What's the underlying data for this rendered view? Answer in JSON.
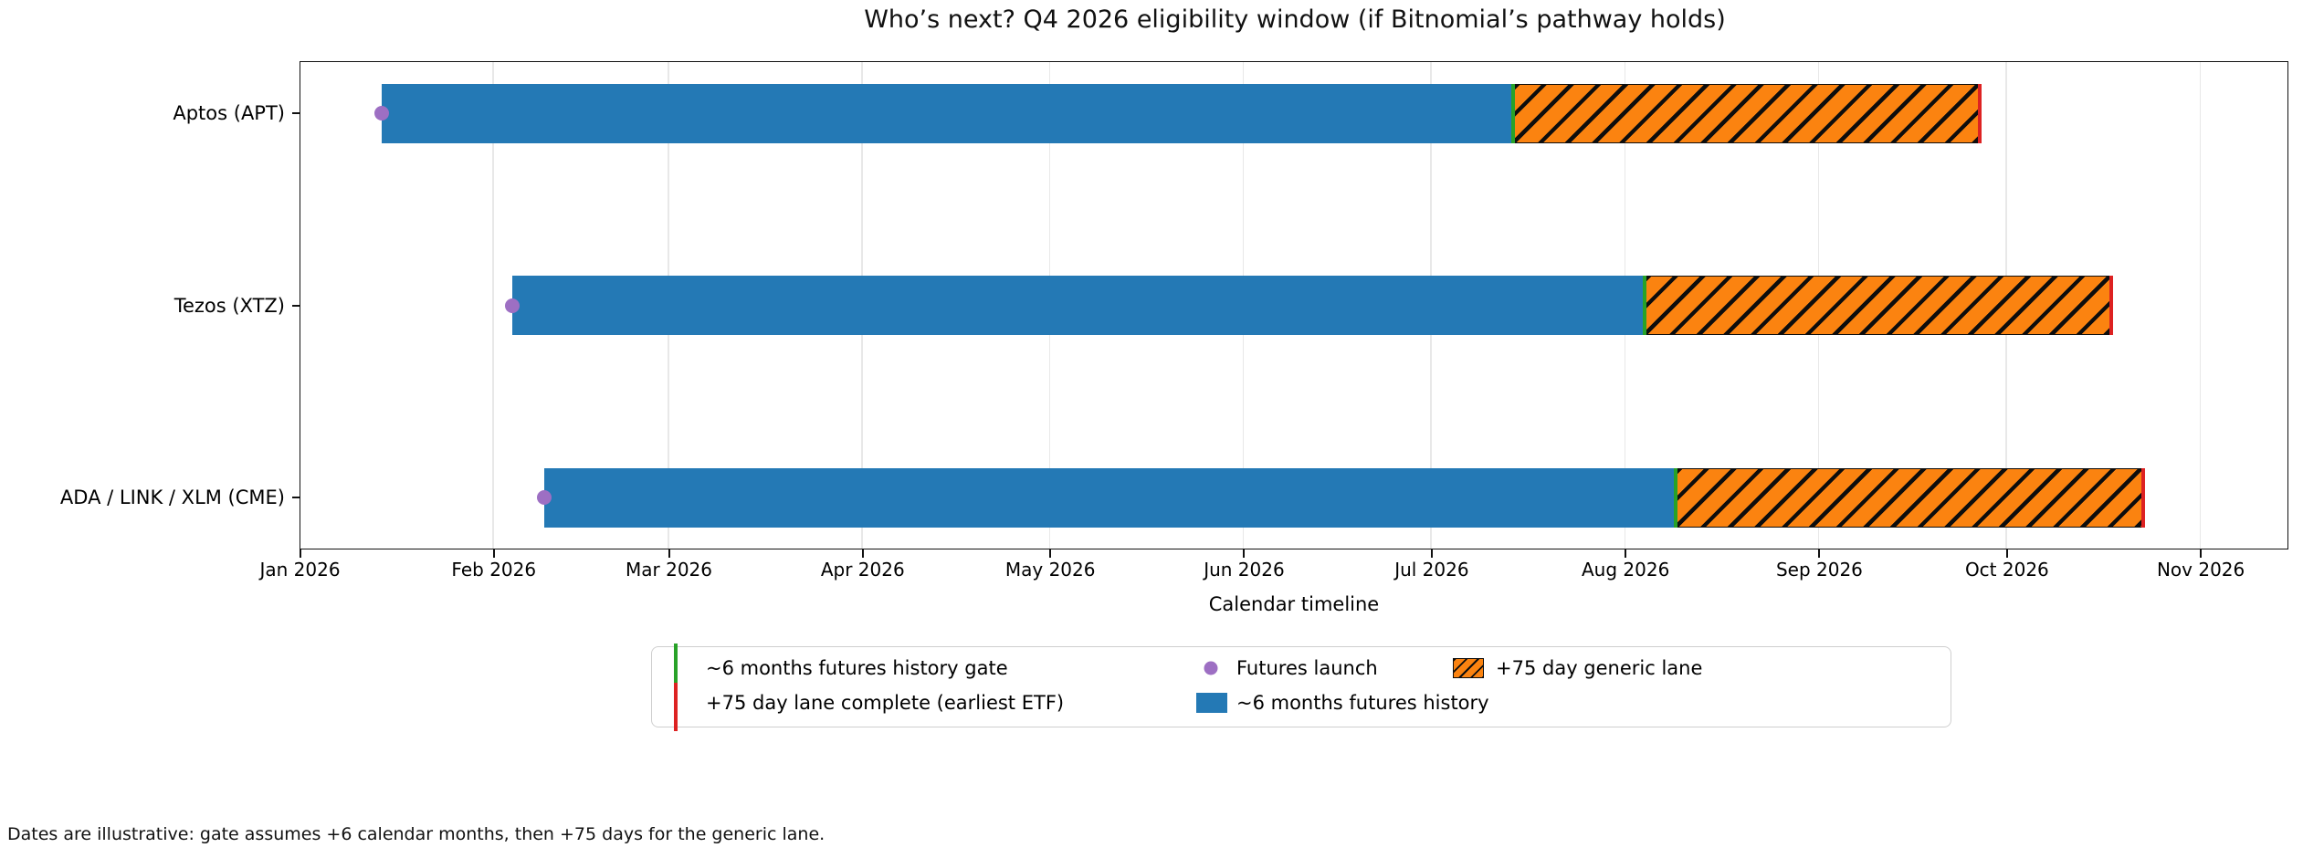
{
  "chart_data": {
    "type": "gantt-timeline",
    "title": "Who’s next? Q4 2026 eligibility window (if Bitnomial’s pathway holds)",
    "xlabel": "Calendar timeline",
    "footnote": "Dates are illustrative: gate assumes +6 calendar months, then +75 days for the generic lane.",
    "x_axis": {
      "start": "2026-01-01",
      "end": "2026-11-15",
      "ticks": [
        {
          "label": "Jan 2026",
          "date": "2026-01-01"
        },
        {
          "label": "Feb 2026",
          "date": "2026-02-01"
        },
        {
          "label": "Mar 2026",
          "date": "2026-03-01"
        },
        {
          "label": "Apr 2026",
          "date": "2026-04-01"
        },
        {
          "label": "May 2026",
          "date": "2026-05-01"
        },
        {
          "label": "Jun 2026",
          "date": "2026-06-01"
        },
        {
          "label": "Jul 2026",
          "date": "2026-07-01"
        },
        {
          "label": "Aug 2026",
          "date": "2026-08-01"
        },
        {
          "label": "Sep 2026",
          "date": "2026-09-01"
        },
        {
          "label": "Oct 2026",
          "date": "2026-10-01"
        },
        {
          "label": "Nov 2026",
          "date": "2026-11-01"
        }
      ],
      "grid": true
    },
    "rows": [
      {
        "label": "Aptos (APT)",
        "futures_launch": "2026-01-14",
        "history_gate": "2026-07-14",
        "lane_complete": "2026-09-27"
      },
      {
        "label": "Tezos (XTZ)",
        "futures_launch": "2026-02-04",
        "history_gate": "2026-08-04",
        "lane_complete": "2026-10-18"
      },
      {
        "label": "ADA / LINK / XLM (CME)",
        "futures_launch": "2026-02-09",
        "history_gate": "2026-08-09",
        "lane_complete": "2026-10-23"
      }
    ],
    "legend": {
      "items": [
        {
          "label": "~6 months futures history gate",
          "marker": "green-vline"
        },
        {
          "label": "+75 day lane complete (earliest ETF)",
          "marker": "red-vline"
        },
        {
          "label": "Futures launch",
          "marker": "purple-dot"
        },
        {
          "label": "~6 months futures history",
          "marker": "blue-swatch"
        },
        {
          "label": "+75 day generic lane",
          "marker": "orange-hatched-swatch"
        }
      ]
    },
    "colors": {
      "history_bar": "#2479b5",
      "generic_lane": "#fb8310",
      "hatch": "#0d0d0d",
      "gate_line": "#28a228",
      "lane_complete_line": "#dd2222",
      "futures_launch_dot": "#9d6fc3",
      "gridline": "#e8e8e8"
    }
  }
}
